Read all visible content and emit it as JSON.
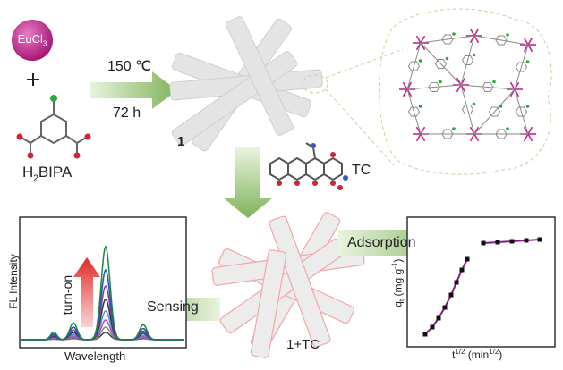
{
  "reagents": {
    "metal_salt": "EuCl3",
    "plus": "+",
    "ligand": "H2BIPA"
  },
  "synthesis": {
    "temperature": "150 ℃",
    "time": "72 h"
  },
  "mof_label": "1",
  "analyte_label": "TC",
  "composite_label": "1+TC",
  "process": {
    "adsorption": "Adsorption",
    "sensing": "Sensing"
  },
  "fl_plot": {
    "ylabel": "FL Intensity",
    "xlabel": "Wavelength",
    "arrow_label": "turn-on"
  },
  "kinetics_plot": {
    "ylabel": "qt (mg g-1)",
    "xlabel": "t1/2 (min1/2)"
  },
  "colors": {
    "eu_sphere": "#c0288c",
    "arrow_green": "#8fbf6a",
    "fit_line": "#8b1a8b",
    "turn_on_arrow": "#e23a3a"
  }
}
